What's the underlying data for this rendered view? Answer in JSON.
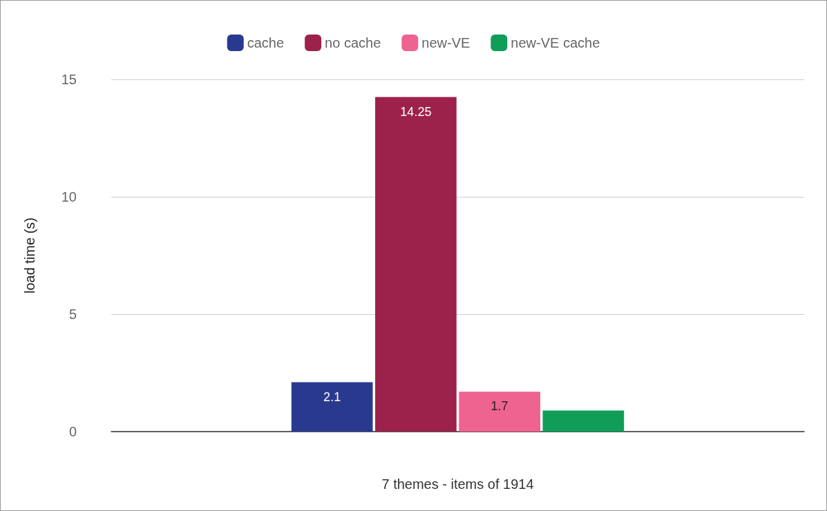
{
  "chart_data": {
    "type": "bar",
    "ylabel": "load time (s)",
    "xlabel": "7 themes - items of 1914",
    "categories": [
      null
    ],
    "series": [
      {
        "name": "cache",
        "color": "#2a3990",
        "values": [
          2.1
        ],
        "value_labels": [
          "2.1"
        ]
      },
      {
        "name": "no cache",
        "color": "#9c224c",
        "values": [
          14.25
        ],
        "value_labels": [
          "14.25"
        ]
      },
      {
        "name": "new-VE",
        "color": "#ef6391",
        "values": [
          1.7
        ],
        "value_labels": [
          "1.7"
        ]
      },
      {
        "name": "new-VE cache",
        "color": "#0f9d58",
        "values": [
          0.9
        ],
        "value_labels": [
          null
        ]
      }
    ],
    "ylim": [
      0,
      15
    ],
    "yticks": [
      0,
      5,
      10,
      15
    ],
    "grid": "y",
    "legend": "top"
  }
}
